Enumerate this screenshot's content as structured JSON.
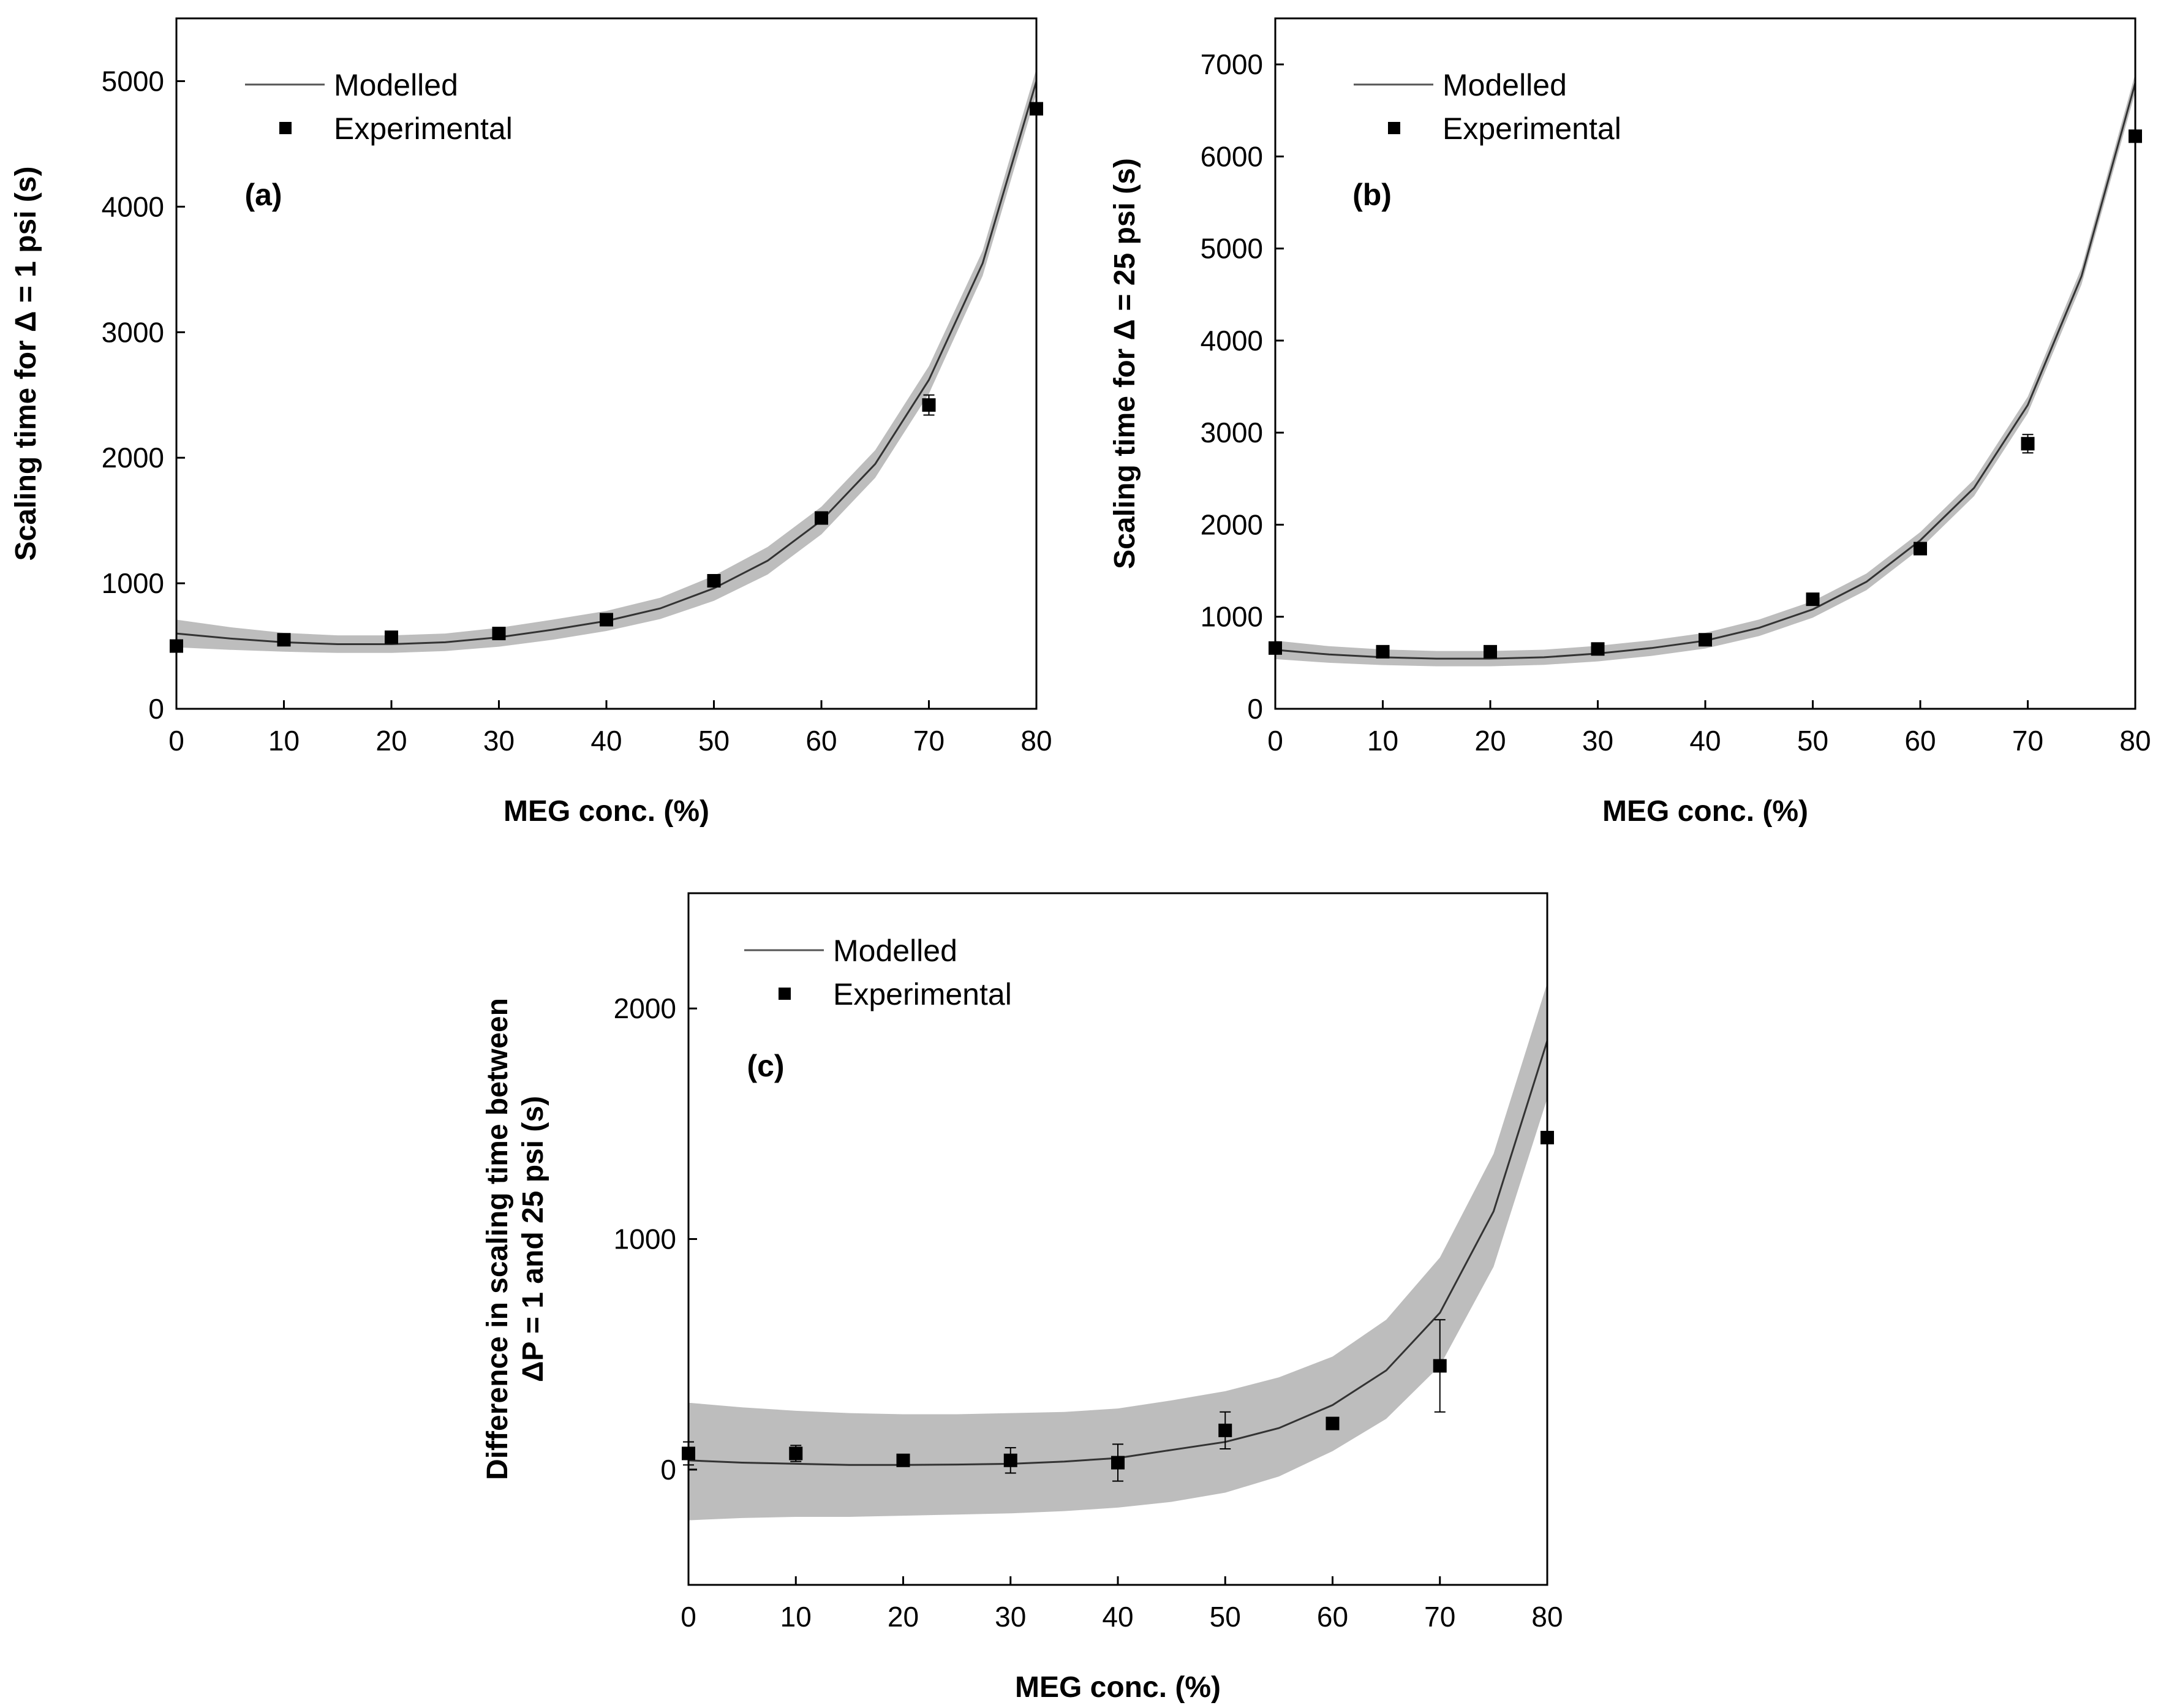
{
  "chart_data": [
    {
      "type": "line",
      "panel_label": "(a)",
      "xlabel": "MEG conc. (%)",
      "ylabel": "Scaling time for Δ = 1 psi (s)",
      "xlim": [
        0,
        80
      ],
      "ylim": [
        0,
        5500
      ],
      "xticks": [
        0,
        10,
        20,
        30,
        40,
        50,
        60,
        70,
        80
      ],
      "yticks": [
        0,
        1000,
        2000,
        3000,
        4000,
        5000
      ],
      "tick_labels_x": [
        "0",
        "10",
        "20",
        "30",
        "40",
        "50",
        "60",
        "70",
        "80"
      ],
      "tick_labels_y": [
        "0",
        "1000",
        "2000",
        "3000",
        "4000",
        "5000"
      ],
      "legend": [
        "Modelled",
        "Experimental"
      ],
      "legend_position": "top-left",
      "series": [
        {
          "name": "Modelled",
          "x": [
            0,
            5,
            10,
            15,
            20,
            25,
            30,
            35,
            40,
            45,
            50,
            55,
            60,
            65,
            70,
            75,
            80
          ],
          "y": [
            600,
            560,
            530,
            515,
            515,
            530,
            570,
            630,
            700,
            800,
            960,
            1180,
            1500,
            1950,
            2620,
            3550,
            5000
          ],
          "band_lower": [
            490,
            470,
            455,
            445,
            445,
            460,
            495,
            550,
            620,
            715,
            860,
            1070,
            1390,
            1840,
            2510,
            3450,
            4900
          ],
          "band_upper": [
            710,
            650,
            605,
            585,
            585,
            600,
            645,
            710,
            780,
            885,
            1060,
            1290,
            1610,
            2060,
            2730,
            3650,
            5100
          ]
        },
        {
          "name": "Experimental",
          "x": [
            0,
            10,
            20,
            30,
            40,
            50,
            60,
            70,
            80
          ],
          "y": [
            500,
            550,
            570,
            600,
            710,
            1020,
            1520,
            2420,
            4780
          ],
          "err": [
            20,
            20,
            20,
            25,
            30,
            35,
            40,
            80,
            40
          ]
        }
      ]
    },
    {
      "type": "line",
      "panel_label": "(b)",
      "xlabel": "MEG conc. (%)",
      "ylabel": "Scaling time for Δ = 25 psi (s)",
      "xlim": [
        0,
        80
      ],
      "ylim": [
        0,
        7500
      ],
      "xticks": [
        0,
        10,
        20,
        30,
        40,
        50,
        60,
        70,
        80
      ],
      "yticks": [
        0,
        1000,
        2000,
        3000,
        4000,
        5000,
        6000,
        7000
      ],
      "tick_labels_x": [
        "0",
        "10",
        "20",
        "30",
        "40",
        "50",
        "60",
        "70",
        "80"
      ],
      "tick_labels_y": [
        "0",
        "1000",
        "2000",
        "3000",
        "4000",
        "5000",
        "6000",
        "7000"
      ],
      "legend": [
        "Modelled",
        "Experimental"
      ],
      "legend_position": "top-left",
      "series": [
        {
          "name": "Modelled",
          "x": [
            0,
            5,
            10,
            15,
            20,
            25,
            30,
            35,
            40,
            45,
            50,
            55,
            60,
            65,
            70,
            75,
            80
          ],
          "y": [
            640,
            590,
            560,
            545,
            545,
            560,
            600,
            660,
            740,
            880,
            1080,
            1380,
            1830,
            2400,
            3300,
            4700,
            6800
          ],
          "band_lower": [
            540,
            500,
            475,
            462,
            462,
            478,
            515,
            575,
            655,
            790,
            990,
            1290,
            1740,
            2310,
            3210,
            4610,
            6700
          ],
          "band_upper": [
            740,
            680,
            645,
            628,
            628,
            642,
            685,
            745,
            825,
            970,
            1170,
            1470,
            1920,
            2490,
            3390,
            4790,
            6900
          ]
        },
        {
          "name": "Experimental",
          "x": [
            0,
            10,
            20,
            30,
            40,
            50,
            60,
            70,
            80
          ],
          "y": [
            660,
            620,
            620,
            650,
            750,
            1190,
            1740,
            2880,
            6220
          ],
          "err": [
            30,
            25,
            25,
            25,
            30,
            50,
            40,
            100,
            50
          ]
        }
      ]
    },
    {
      "type": "line",
      "panel_label": "(c)",
      "xlabel": "MEG conc. (%)",
      "ylabel": [
        "Difference in scaling time between",
        "ΔP = 1 and 25 psi (s)"
      ],
      "xlim": [
        0,
        80
      ],
      "ylim": [
        -500,
        2500
      ],
      "xticks": [
        0,
        10,
        20,
        30,
        40,
        50,
        60,
        70,
        80
      ],
      "yticks": [
        0,
        1000,
        2000
      ],
      "tick_labels_x": [
        "0",
        "10",
        "20",
        "30",
        "40",
        "50",
        "60",
        "70",
        "80"
      ],
      "tick_labels_y": [
        "0",
        "1000",
        "2000"
      ],
      "legend": [
        "Modelled",
        "Experimental"
      ],
      "legend_position": "top-left",
      "series": [
        {
          "name": "Modelled",
          "x": [
            0,
            5,
            10,
            15,
            20,
            25,
            30,
            35,
            40,
            45,
            50,
            55,
            60,
            65,
            70,
            75,
            80
          ],
          "y": [
            40,
            30,
            25,
            20,
            20,
            22,
            25,
            35,
            50,
            85,
            120,
            180,
            280,
            430,
            680,
            1120,
            1860
          ],
          "band_lower": [
            -220,
            -210,
            -205,
            -205,
            -200,
            -195,
            -190,
            -180,
            -165,
            -140,
            -100,
            -30,
            80,
            220,
            450,
            880,
            1610
          ],
          "band_upper": [
            290,
            270,
            255,
            245,
            240,
            240,
            245,
            250,
            265,
            300,
            340,
            400,
            490,
            650,
            920,
            1370,
            2110
          ]
        },
        {
          "name": "Experimental",
          "x": [
            0,
            10,
            20,
            30,
            40,
            50,
            60,
            70,
            80
          ],
          "y": [
            70,
            70,
            40,
            40,
            30,
            170,
            200,
            450,
            1440
          ],
          "err": [
            50,
            35,
            15,
            55,
            80,
            80,
            15,
            200,
            20
          ]
        }
      ]
    }
  ]
}
